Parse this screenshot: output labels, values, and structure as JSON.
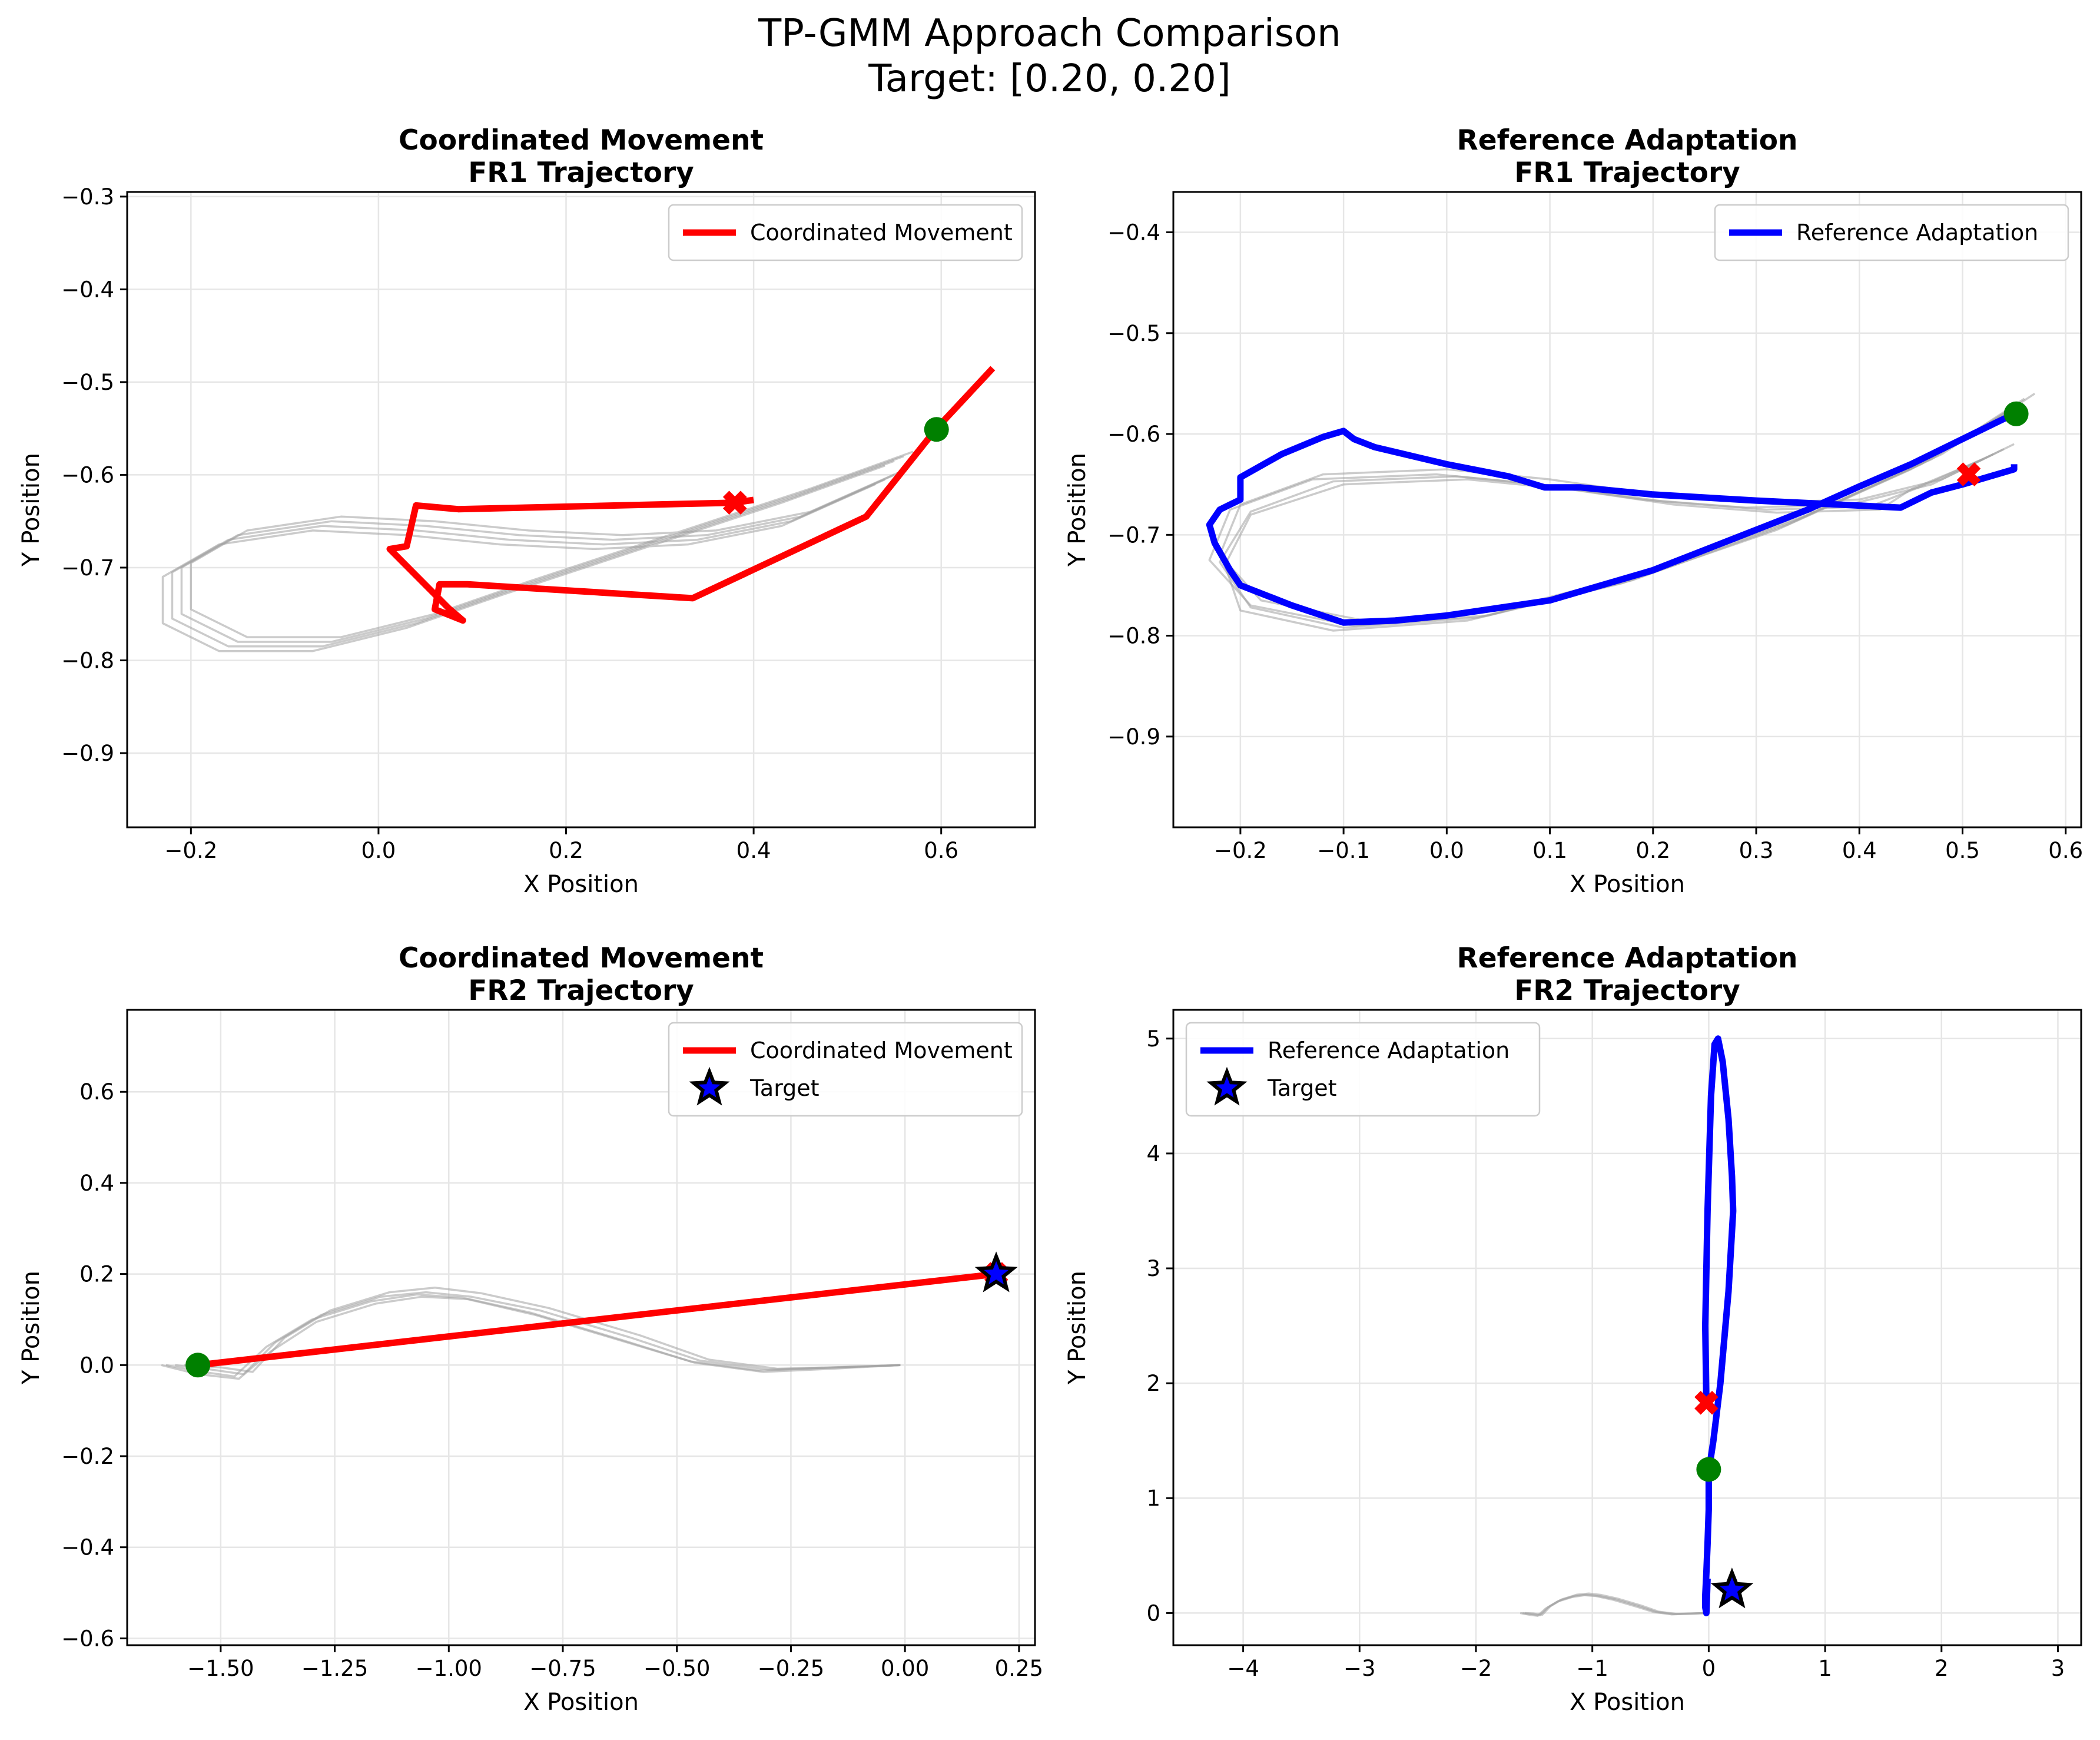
{
  "figure": {
    "title_line1": "TP-GMM Approach Comparison",
    "title_line2": "Target: [0.20, 0.20]"
  },
  "colors": {
    "coordinated": "#ff0000",
    "reference": "#0000ff",
    "demo": "#a0a0a0",
    "start_marker": "#008000",
    "end_marker": "#ff0000",
    "target_fill": "#0000ff",
    "target_edge": "#000000",
    "grid": "#e6e6e6"
  },
  "chart_data": [
    {
      "type": "line",
      "title_line1": "Coordinated Movement",
      "title_line2": "FR1 Trajectory",
      "xlabel": "X Position",
      "ylabel": "Y Position",
      "xlim": [
        -0.268,
        0.7
      ],
      "ylim": [
        -0.98,
        -0.295
      ],
      "xticks": [
        -0.2,
        0.0,
        0.2,
        0.4,
        0.6
      ],
      "xtick_labels": [
        "−0.2",
        "0.0",
        "0.2",
        "0.4",
        "0.6"
      ],
      "yticks": [
        -0.9,
        -0.8,
        -0.7,
        -0.6,
        -0.5,
        -0.4,
        -0.3
      ],
      "ytick_labels": [
        "−0.9",
        "−0.8",
        "−0.7",
        "−0.6",
        "−0.5",
        "−0.4",
        "−0.3"
      ],
      "grid": true,
      "legend_position": "upper right",
      "legend": [
        {
          "label": "Coordinated Movement",
          "kind": "line",
          "color": "#ff0000"
        }
      ],
      "series": [
        {
          "name": "Coordinated Movement",
          "color": "#ff0000",
          "x": [
            0.4,
            0.38,
            0.085,
            0.04,
            0.03,
            0.012,
            0.075,
            0.09,
            0.06,
            0.065,
            0.095,
            0.335,
            0.52,
            0.595,
            0.655
          ],
          "y": [
            -0.627,
            -0.63,
            -0.637,
            -0.633,
            -0.677,
            -0.68,
            -0.744,
            -0.757,
            -0.745,
            -0.718,
            -0.718,
            -0.733,
            -0.645,
            -0.55,
            -0.485
          ]
        }
      ],
      "demos": [
        {
          "x": [
            0.56,
            0.45,
            0.3,
            0.15,
            0.05,
            -0.05,
            -0.15,
            -0.21,
            -0.21,
            -0.15,
            -0.05,
            0.05,
            0.15,
            0.25,
            0.35,
            0.45,
            0.55
          ],
          "y": [
            -0.58,
            -0.62,
            -0.67,
            -0.72,
            -0.755,
            -0.78,
            -0.78,
            -0.75,
            -0.7,
            -0.665,
            -0.65,
            -0.655,
            -0.665,
            -0.67,
            -0.665,
            -0.645,
            -0.6
          ]
        },
        {
          "x": [
            0.55,
            0.44,
            0.29,
            0.14,
            0.04,
            -0.06,
            -0.16,
            -0.22,
            -0.22,
            -0.16,
            -0.06,
            0.04,
            0.14,
            0.24,
            0.34,
            0.44,
            0.54
          ],
          "y": [
            -0.585,
            -0.625,
            -0.675,
            -0.725,
            -0.76,
            -0.785,
            -0.785,
            -0.755,
            -0.705,
            -0.67,
            -0.655,
            -0.66,
            -0.67,
            -0.675,
            -0.67,
            -0.65,
            -0.605
          ]
        },
        {
          "x": [
            0.57,
            0.46,
            0.31,
            0.16,
            0.06,
            -0.04,
            -0.14,
            -0.2,
            -0.2,
            -0.14,
            -0.04,
            0.06,
            0.16,
            0.26,
            0.36,
            0.46,
            0.56
          ],
          "y": [
            -0.575,
            -0.615,
            -0.665,
            -0.715,
            -0.75,
            -0.775,
            -0.775,
            -0.745,
            -0.695,
            -0.66,
            -0.645,
            -0.65,
            -0.66,
            -0.665,
            -0.66,
            -0.64,
            -0.595
          ]
        },
        {
          "x": [
            0.54,
            0.43,
            0.28,
            0.13,
            0.03,
            -0.07,
            -0.17,
            -0.23,
            -0.23,
            -0.17,
            -0.07,
            0.03,
            0.13,
            0.23,
            0.33,
            0.43,
            0.53
          ],
          "y": [
            -0.59,
            -0.63,
            -0.68,
            -0.73,
            -0.765,
            -0.79,
            -0.79,
            -0.76,
            -0.71,
            -0.675,
            -0.66,
            -0.665,
            -0.675,
            -0.68,
            -0.675,
            -0.655,
            -0.61
          ]
        }
      ],
      "markers": [
        {
          "kind": "start",
          "x": 0.595,
          "y": -0.551,
          "color": "#008000"
        },
        {
          "kind": "end",
          "x": 0.38,
          "y": -0.63,
          "color": "#ff0000"
        }
      ]
    },
    {
      "type": "line",
      "title_line1": "Reference Adaptation",
      "title_line2": "FR1 Trajectory",
      "xlabel": "X Position",
      "ylabel": "Y Position",
      "xlim": [
        -0.265,
        0.615
      ],
      "ylim": [
        -0.99,
        -0.36
      ],
      "xticks": [
        -0.2,
        -0.1,
        0.0,
        0.1,
        0.2,
        0.3,
        0.4,
        0.5,
        0.6
      ],
      "xtick_labels": [
        "−0.2",
        "−0.1",
        "0.0",
        "0.1",
        "0.2",
        "0.3",
        "0.4",
        "0.5",
        "0.6"
      ],
      "yticks": [
        -0.9,
        -0.8,
        -0.7,
        -0.6,
        -0.5,
        -0.4
      ],
      "ytick_labels": [
        "−0.9",
        "−0.8",
        "−0.7",
        "−0.6",
        "−0.5",
        "−0.4"
      ],
      "grid": true,
      "legend_position": "upper right",
      "legend": [
        {
          "label": "Reference Adaptation",
          "kind": "line",
          "color": "#0000ff"
        }
      ],
      "series": [
        {
          "name": "Reference Adaptation",
          "color": "#0000ff",
          "x": [
            0.55,
            0.5,
            0.45,
            0.4,
            0.35,
            0.3,
            0.2,
            0.1,
            0.0,
            -0.05,
            -0.1,
            -0.15,
            -0.2,
            -0.21,
            -0.225,
            -0.23,
            -0.22,
            -0.21,
            -0.2,
            -0.2,
            -0.16,
            -0.12,
            -0.1,
            -0.09,
            -0.07,
            0.0,
            0.06,
            0.095,
            0.13,
            0.2,
            0.3,
            0.44,
            0.47,
            0.5,
            0.55,
            0.55
          ],
          "y": [
            -0.58,
            -0.605,
            -0.63,
            -0.652,
            -0.675,
            -0.695,
            -0.735,
            -0.765,
            -0.78,
            -0.785,
            -0.787,
            -0.77,
            -0.75,
            -0.735,
            -0.708,
            -0.69,
            -0.675,
            -0.67,
            -0.665,
            -0.643,
            -0.62,
            -0.603,
            -0.597,
            -0.605,
            -0.613,
            -0.63,
            -0.642,
            -0.653,
            -0.653,
            -0.66,
            -0.666,
            -0.673,
            -0.658,
            -0.65,
            -0.635,
            -0.63
          ]
        }
      ],
      "demos": [
        {
          "x": [
            0.57,
            0.48,
            0.35,
            0.2,
            0.05,
            -0.08,
            -0.18,
            -0.22,
            -0.2,
            -0.12,
            0.0,
            0.1,
            0.2,
            0.3,
            0.4,
            0.48,
            0.55
          ],
          "y": [
            -0.56,
            -0.62,
            -0.68,
            -0.735,
            -0.775,
            -0.785,
            -0.765,
            -0.72,
            -0.67,
            -0.64,
            -0.635,
            -0.645,
            -0.66,
            -0.668,
            -0.665,
            -0.645,
            -0.61
          ]
        },
        {
          "x": [
            0.56,
            0.47,
            0.34,
            0.19,
            0.04,
            -0.09,
            -0.19,
            -0.23,
            -0.21,
            -0.13,
            -0.01,
            0.09,
            0.19,
            0.29,
            0.39,
            0.47,
            0.54
          ],
          "y": [
            -0.565,
            -0.625,
            -0.685,
            -0.74,
            -0.78,
            -0.79,
            -0.77,
            -0.725,
            -0.675,
            -0.645,
            -0.64,
            -0.65,
            -0.665,
            -0.673,
            -0.67,
            -0.65,
            -0.615
          ]
        },
        {
          "x": [
            0.555,
            0.46,
            0.33,
            0.18,
            0.03,
            -0.1,
            -0.19,
            -0.22,
            -0.19,
            -0.11,
            0.01,
            0.11,
            0.21,
            0.31,
            0.41,
            0.46,
            0.53
          ],
          "y": [
            -0.57,
            -0.63,
            -0.69,
            -0.745,
            -0.782,
            -0.792,
            -0.772,
            -0.727,
            -0.677,
            -0.647,
            -0.642,
            -0.652,
            -0.667,
            -0.675,
            -0.672,
            -0.652,
            -0.62
          ]
        },
        {
          "x": [
            0.55,
            0.45,
            0.32,
            0.17,
            0.02,
            -0.11,
            -0.2,
            -0.215,
            -0.19,
            -0.1,
            0.02,
            0.12,
            0.22,
            0.32,
            0.42,
            0.45,
            0.52
          ],
          "y": [
            -0.575,
            -0.635,
            -0.695,
            -0.748,
            -0.785,
            -0.795,
            -0.775,
            -0.73,
            -0.68,
            -0.65,
            -0.645,
            -0.655,
            -0.67,
            -0.678,
            -0.675,
            -0.655,
            -0.625
          ]
        }
      ],
      "markers": [
        {
          "kind": "start",
          "x": 0.552,
          "y": -0.58,
          "color": "#008000"
        },
        {
          "kind": "end",
          "x": 0.506,
          "y": -0.64,
          "color": "#ff0000"
        }
      ]
    },
    {
      "type": "line",
      "title_line1": "Coordinated Movement",
      "title_line2": "FR2 Trajectory",
      "xlabel": "X Position",
      "ylabel": "Y Position",
      "xlim": [
        -1.705,
        0.285
      ],
      "ylim": [
        -0.615,
        0.78
      ],
      "xticks": [
        -1.5,
        -1.25,
        -1.0,
        -0.75,
        -0.5,
        -0.25,
        0.0,
        0.25
      ],
      "xtick_labels": [
        "−1.50",
        "−1.25",
        "−1.00",
        "−0.75",
        "−0.50",
        "−0.25",
        "0.00",
        "0.25"
      ],
      "yticks": [
        -0.6,
        -0.4,
        -0.2,
        0.0,
        0.2,
        0.4,
        0.6
      ],
      "ytick_labels": [
        "−0.6",
        "−0.4",
        "−0.2",
        "0.0",
        "0.2",
        "0.4",
        "0.6"
      ],
      "grid": true,
      "legend_position": "upper right",
      "legend": [
        {
          "label": "Coordinated Movement",
          "kind": "line",
          "color": "#ff0000"
        },
        {
          "label": "Target",
          "kind": "star",
          "color": "#0000ff"
        }
      ],
      "series": [
        {
          "name": "Coordinated Movement",
          "color": "#ff0000",
          "x": [
            -1.55,
            0.2
          ],
          "y": [
            0.0,
            0.2
          ]
        }
      ],
      "demos": [
        {
          "x": [
            -1.6,
            -1.52,
            -1.45,
            -1.38,
            -1.28,
            -1.15,
            -1.05,
            -0.95,
            -0.8,
            -0.6,
            -0.45,
            -0.3,
            -0.15,
            -0.01
          ],
          "y": [
            0.0,
            -0.01,
            -0.02,
            0.05,
            0.11,
            0.15,
            0.16,
            0.15,
            0.12,
            0.06,
            0.01,
            -0.01,
            -0.005,
            0.0
          ]
        },
        {
          "x": [
            -1.62,
            -1.54,
            -1.47,
            -1.4,
            -1.3,
            -1.17,
            -1.07,
            -0.97,
            -0.82,
            -0.62,
            -0.47,
            -0.32,
            -0.17,
            -0.01
          ],
          "y": [
            0.0,
            -0.015,
            -0.025,
            0.04,
            0.1,
            0.14,
            0.155,
            0.148,
            0.115,
            0.055,
            0.008,
            -0.012,
            -0.006,
            0.0
          ]
        },
        {
          "x": [
            -1.58,
            -1.5,
            -1.43,
            -1.36,
            -1.26,
            -1.13,
            -1.03,
            -0.93,
            -0.78,
            -0.58,
            -0.43,
            -0.28,
            -0.13,
            -0.01
          ],
          "y": [
            0.0,
            -0.005,
            -0.015,
            0.06,
            0.12,
            0.16,
            0.17,
            0.158,
            0.125,
            0.065,
            0.012,
            -0.008,
            -0.004,
            0.0
          ]
        },
        {
          "x": [
            -1.63,
            -1.55,
            -1.46,
            -1.39,
            -1.29,
            -1.16,
            -1.06,
            -0.96,
            -0.81,
            -0.61,
            -0.46,
            -0.31,
            -0.16,
            -0.01
          ],
          "y": [
            0.0,
            -0.02,
            -0.03,
            0.03,
            0.095,
            0.135,
            0.15,
            0.145,
            0.11,
            0.05,
            0.005,
            -0.015,
            -0.008,
            0.0
          ]
        }
      ],
      "markers": [
        {
          "kind": "start",
          "x": -1.55,
          "y": 0.0,
          "color": "#008000"
        },
        {
          "kind": "end",
          "x": 0.2,
          "y": 0.2,
          "color": "#ff0000"
        },
        {
          "kind": "target",
          "x": 0.2,
          "y": 0.2,
          "color": "#0000ff"
        }
      ]
    },
    {
      "type": "line",
      "title_line1": "Reference Adaptation",
      "title_line2": "FR2 Trajectory",
      "xlabel": "X Position",
      "ylabel": "Y Position",
      "xlim": [
        -4.6,
        3.2
      ],
      "ylim": [
        -0.28,
        5.25
      ],
      "xticks": [
        -4,
        -3,
        -2,
        -1,
        0,
        1,
        2,
        3
      ],
      "xtick_labels": [
        "−4",
        "−3",
        "−2",
        "−1",
        "0",
        "1",
        "2",
        "3"
      ],
      "yticks": [
        0,
        1,
        2,
        3,
        4,
        5
      ],
      "ytick_labels": [
        "0",
        "1",
        "2",
        "3",
        "4",
        "5"
      ],
      "grid": true,
      "legend_position": "upper left",
      "legend": [
        {
          "label": "Reference Adaptation",
          "kind": "line",
          "color": "#0000ff"
        },
        {
          "label": "Target",
          "kind": "star",
          "color": "#0000ff"
        }
      ],
      "series": [
        {
          "name": "Reference Adaptation",
          "color": "#0000ff",
          "x": [
            -0.02,
            -0.03,
            -0.01,
            0.02,
            0.05,
            0.08,
            0.12,
            0.17,
            0.2,
            0.21,
            0.17,
            0.1,
            0.04,
            0.01,
            0.0,
            0.0,
            -0.01,
            -0.02,
            -0.03,
            -0.03,
            -0.02,
            -0.01
          ],
          "y": [
            1.83,
            2.5,
            3.5,
            4.5,
            4.95,
            5.0,
            4.8,
            4.3,
            3.8,
            3.5,
            2.8,
            2.0,
            1.5,
            1.3,
            1.2,
            0.9,
            0.6,
            0.35,
            0.15,
            0.05,
            0.0,
            0.3
          ]
        }
      ],
      "demos": [
        {
          "x": [
            -1.6,
            -1.52,
            -1.45,
            -1.38,
            -1.28,
            -1.15,
            -1.05,
            -0.95,
            -0.8,
            -0.6,
            -0.45,
            -0.3,
            -0.15,
            -0.01
          ],
          "y": [
            0.0,
            -0.01,
            -0.02,
            0.05,
            0.11,
            0.15,
            0.16,
            0.15,
            0.12,
            0.06,
            0.01,
            -0.01,
            -0.005,
            0.0
          ]
        },
        {
          "x": [
            -1.62,
            -1.54,
            -1.47,
            -1.4,
            -1.3,
            -1.17,
            -1.07,
            -0.97,
            -0.82,
            -0.62,
            -0.47,
            -0.32,
            -0.17,
            -0.01
          ],
          "y": [
            0.0,
            -0.015,
            -0.025,
            0.04,
            0.1,
            0.14,
            0.155,
            0.148,
            0.115,
            0.055,
            0.008,
            -0.012,
            -0.006,
            0.0
          ]
        },
        {
          "x": [
            -1.58,
            -1.5,
            -1.43,
            -1.36,
            -1.26,
            -1.13,
            -1.03,
            -0.93,
            -0.78,
            -0.58,
            -0.43,
            -0.28,
            -0.13,
            -0.01
          ],
          "y": [
            0.0,
            -0.005,
            -0.015,
            0.06,
            0.12,
            0.16,
            0.17,
            0.158,
            0.125,
            0.065,
            0.012,
            -0.008,
            -0.004,
            0.0
          ]
        }
      ],
      "markers": [
        {
          "kind": "start",
          "x": 0.0,
          "y": 1.25,
          "color": "#008000"
        },
        {
          "kind": "end",
          "x": -0.02,
          "y": 1.83,
          "color": "#ff0000"
        },
        {
          "kind": "target",
          "x": 0.2,
          "y": 0.2,
          "color": "#0000ff"
        }
      ]
    }
  ]
}
